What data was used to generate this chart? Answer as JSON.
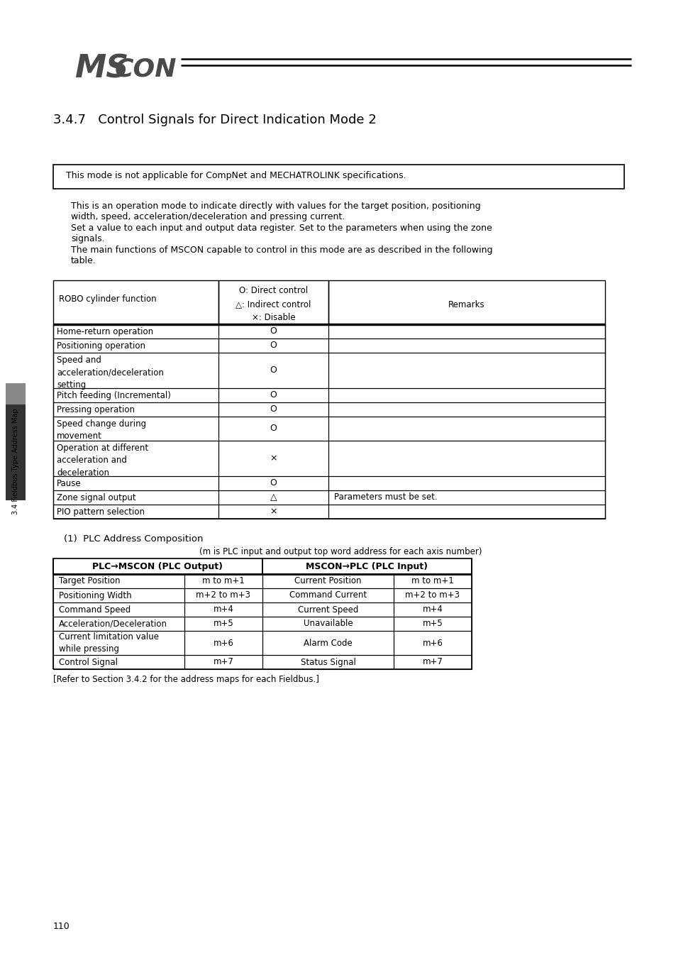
{
  "title_section": "3.4.7   Control Signals for Direct Indication Mode 2",
  "notice_text": "This mode is not applicable for CompNet and MECHATROLINK specifications.",
  "body_text_lines": [
    "This is an operation mode to indicate directly with values for the target position, positioning",
    "width, speed, acceleration/deceleration and pressing current.",
    "Set a value to each input and output data register. Set to the parameters when using the zone",
    "signals.",
    "The main functions of MSCON capable to control in this mode are as described in the following",
    "table."
  ],
  "table1_header_col1": "ROBO cylinder function",
  "table1_header_col2": "O: Direct control\n△: Indirect control\n×: Disable",
  "table1_header_col3": "Remarks",
  "table1_rows": [
    [
      "Home-return operation",
      "O",
      ""
    ],
    [
      "Positioning operation",
      "O",
      ""
    ],
    [
      "Speed and\nacceleration/deceleration\nsetting",
      "O",
      ""
    ],
    [
      "Pitch feeding (Incremental)",
      "O",
      ""
    ],
    [
      "Pressing operation",
      "O",
      ""
    ],
    [
      "Speed change during\nmovement",
      "O",
      ""
    ],
    [
      "Operation at different\nacceleration and\ndeceleration",
      "×",
      ""
    ],
    [
      "Pause",
      "O",
      ""
    ],
    [
      "Zone signal output",
      "△",
      "Parameters must be set."
    ],
    [
      "PIO pattern selection",
      "×",
      ""
    ]
  ],
  "plc_title": "(1)  PLC Address Composition",
  "plc_subtitle": "(m is PLC input and output top word address for each axis number)",
  "table2_header_left": "PLC→MSCON (PLC Output)",
  "table2_header_right": "MSCON→PLC (PLC Input)",
  "table2_rows": [
    [
      "Target Position",
      "m to m+1",
      "Current Position",
      "m to m+1"
    ],
    [
      "Positioning Width",
      "m+2 to m+3",
      "Command Current",
      "m+2 to m+3"
    ],
    [
      "Command Speed",
      "m+4",
      "Current Speed",
      "m+4"
    ],
    [
      "Acceleration/Deceleration",
      "m+5",
      "Unavailable",
      "m+5"
    ],
    [
      "Current limitation value\nwhile pressing",
      "m+6",
      "Alarm Code",
      "m+6"
    ],
    [
      "Control Signal",
      "m+7",
      "Status Signal",
      "m+7"
    ]
  ],
  "footer_text": "[Refer to Section 3.4.2 for the address maps for each Fieldbus.]",
  "page_number": "110",
  "sidebar_text": "3.4 Fieldbus Type Address Map",
  "logo_ms_color": "#555555",
  "logo_con_color": "#555555"
}
